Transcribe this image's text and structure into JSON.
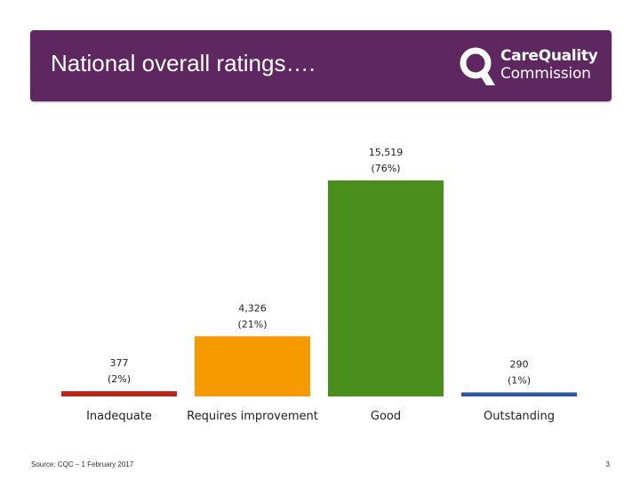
{
  "header": {
    "title": "National overall ratings…."
  },
  "logo": {
    "line1": "CareQuality",
    "line2": "Commission",
    "icon": "cqc-logo-icon"
  },
  "colors": {
    "banner": "#5e2760",
    "inadequate": "#b5291d",
    "requires_improvement": "#f59a00",
    "good": "#4a8f1c",
    "outstanding": "#2f5597"
  },
  "chart_data": {
    "type": "bar",
    "title": "",
    "xlabel": "",
    "ylabel": "",
    "ylim": [
      0,
      15519
    ],
    "grid": false,
    "categories": [
      "Inadequate",
      "Requires improvement",
      "Good",
      "Outstanding"
    ],
    "values": [
      377,
      4326,
      15519,
      290
    ],
    "value_labels": [
      "377",
      "4,326",
      "15,519",
      "290"
    ],
    "percent_labels": [
      "(2%)",
      "(21%)",
      "(76%)",
      "(1%)"
    ],
    "colors": [
      "#b5291d",
      "#f59a00",
      "#4a8f1c",
      "#2f5597"
    ]
  },
  "footer": {
    "source": "Source: CQC – 1 February 2017",
    "page": "3"
  }
}
